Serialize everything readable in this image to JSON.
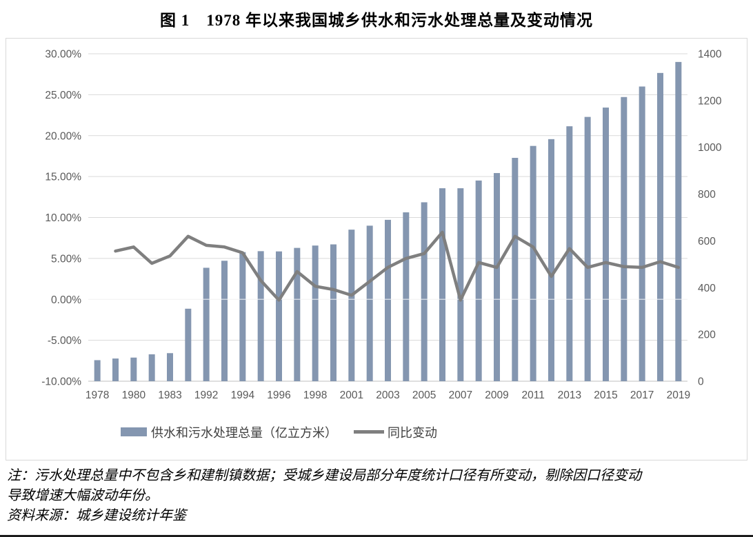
{
  "figure": {
    "title": "图 1　1978 年以来我国城乡供水和污水处理总量及变动情况"
  },
  "notes": {
    "line1": "注：污水处理总量中不包含乡和建制镇数据；受城乡建设局部分年度统计口径有所变动，剔除因口径变动",
    "line2": "导致增速大幅波动年份。",
    "source": "资料来源：城乡建设统计年鉴"
  },
  "colors": {
    "bar": "#8496B0",
    "line": "#7F7F7F",
    "axis_text": "#595959",
    "gridline": "#D9D9D9",
    "chart_border": "#D9D9D9",
    "legend_text": "#3F3F3F"
  },
  "chart_data": {
    "type": "combo-bar-line",
    "title": "图 1　1978 年以来我国城乡供水和污水处理总量及变动情况",
    "categories": [
      "1978",
      "",
      "1980",
      "",
      "1983",
      "",
      "1992",
      "",
      "1994",
      "",
      "1996",
      "",
      "1998",
      "",
      "2001",
      "",
      "2003",
      "",
      "2005",
      "",
      "2007",
      "",
      "2009",
      "",
      "2011",
      "",
      "2013",
      "",
      "2015",
      "",
      "2017",
      "",
      "2019"
    ],
    "x_tick_labels": [
      "1978",
      "1980",
      "1983",
      "1992",
      "1994",
      "1996",
      "1998",
      "2001",
      "2003",
      "2005",
      "2007",
      "2009",
      "2011",
      "2013",
      "2015",
      "2017",
      "2019"
    ],
    "series": [
      {
        "name": "供水和污水处理总量（亿立方米）",
        "type": "bar",
        "axis": "right",
        "color": "#8496B0",
        "values": [
          90,
          97,
          101,
          115,
          120,
          310,
          485,
          515,
          552,
          556,
          555,
          570,
          580,
          585,
          648,
          665,
          690,
          722,
          765,
          825,
          825,
          858,
          890,
          955,
          1006,
          1035,
          1090,
          1130,
          1170,
          1215,
          1260,
          1318,
          1365
        ]
      },
      {
        "name": "同比变动",
        "type": "line",
        "axis": "left",
        "color": "#7F7F7F",
        "values": [
          null,
          5.9,
          6.4,
          4.4,
          5.3,
          7.7,
          6.6,
          6.4,
          5.7,
          2.3,
          -0.1,
          3.4,
          1.6,
          1.2,
          0.5,
          2.2,
          3.9,
          5.0,
          5.6,
          8.2,
          -0.1,
          4.5,
          3.9,
          7.7,
          6.4,
          2.8,
          6.2,
          3.9,
          4.5,
          4.0,
          3.9,
          4.6,
          3.9
        ]
      }
    ],
    "left_axis": {
      "tick_labels": [
        "30.00%",
        "25.00%",
        "20.00%",
        "15.00%",
        "10.00%",
        "5.00%",
        "0.00%",
        "-5.00%",
        "-10.00%"
      ],
      "min": -10,
      "max": 30,
      "unit": "%"
    },
    "right_axis": {
      "tick_labels": [
        "1400",
        "1200",
        "1000",
        "800",
        "600",
        "400",
        "200",
        "0"
      ],
      "min": 0,
      "max": 1400
    },
    "grid": true,
    "legend_position": "bottom",
    "legend": [
      {
        "label": "供水和污水处理总量（亿立方米）",
        "swatch": "bar"
      },
      {
        "label": "同比变动",
        "swatch": "line"
      }
    ]
  }
}
